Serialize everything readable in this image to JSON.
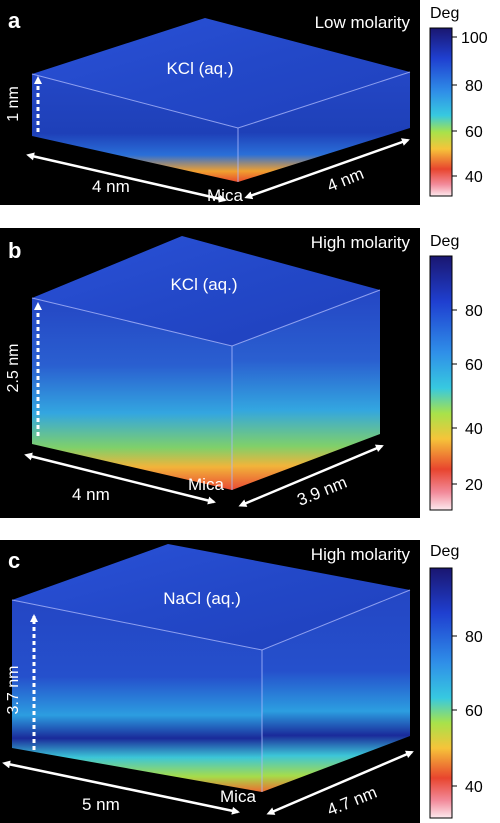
{
  "panels": [
    {
      "letter": "a",
      "condition": "Low molarity",
      "solution": "KCl (aq.)",
      "thickness": "1 nm",
      "width": "4 nm",
      "depth": "4 nm",
      "substrate": "Mica",
      "colorbar": {
        "title": "Deg",
        "ticks": [
          "100",
          "80",
          "60",
          "40"
        ]
      }
    },
    {
      "letter": "b",
      "condition": "High molarity",
      "solution": "KCl (aq.)",
      "thickness": "2.5 nm",
      "width": "4 nm",
      "depth": "3.9 nm",
      "substrate": "Mica",
      "colorbar": {
        "title": "Deg",
        "ticks": [
          "80",
          "60",
          "40",
          "20"
        ]
      }
    },
    {
      "letter": "c",
      "condition": "High molarity",
      "solution": "NaCl (aq.)",
      "thickness": "3.7 nm",
      "width": "5 nm",
      "depth": "4.7 nm",
      "substrate": "Mica",
      "colorbar": {
        "title": "Deg",
        "ticks": [
          "80",
          "60",
          "40"
        ]
      }
    }
  ]
}
